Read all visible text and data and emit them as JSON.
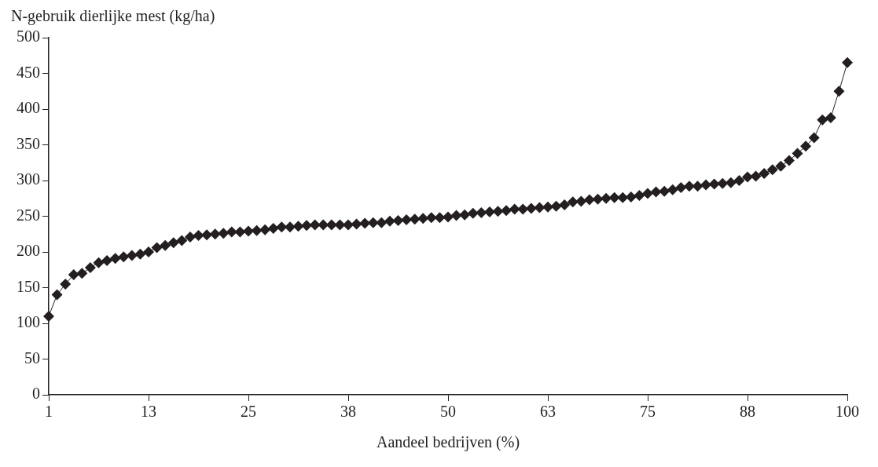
{
  "chart_data": {
    "type": "line",
    "xlabel": "Aandeel bedrijven (%)",
    "ylabel": "N-gebruik dierlijke mest (kg/ha)",
    "categories": [
      "1",
      null,
      null,
      null,
      null,
      null,
      null,
      null,
      null,
      null,
      null,
      null,
      "13",
      null,
      null,
      null,
      null,
      null,
      null,
      null,
      null,
      null,
      null,
      null,
      "25",
      null,
      null,
      null,
      null,
      null,
      null,
      null,
      null,
      null,
      null,
      null,
      "38",
      null,
      null,
      null,
      null,
      null,
      null,
      null,
      null,
      null,
      null,
      null,
      "50",
      null,
      null,
      null,
      null,
      null,
      null,
      null,
      null,
      null,
      null,
      null,
      "63",
      null,
      null,
      null,
      null,
      null,
      null,
      null,
      null,
      null,
      null,
      null,
      "75",
      null,
      null,
      null,
      null,
      null,
      null,
      null,
      null,
      null,
      null,
      null,
      "88",
      null,
      null,
      null,
      null,
      null,
      null,
      null,
      null,
      null,
      null,
      null,
      "100"
    ],
    "ylim": [
      0,
      500
    ],
    "yticks": [
      0,
      50,
      100,
      150,
      200,
      250,
      300,
      350,
      400,
      450,
      500
    ],
    "grid": false,
    "legend": false,
    "marker": "diamond",
    "line_style": "solid",
    "series": [
      {
        "color": "#231f20",
        "values": [
          110,
          140,
          155,
          168,
          170,
          178,
          185,
          188,
          191,
          193,
          195,
          197,
          200,
          206,
          209,
          213,
          216,
          221,
          223,
          224,
          225,
          226,
          228,
          228,
          229,
          230,
          231,
          233,
          235,
          235,
          236,
          237,
          238,
          238,
          238,
          238,
          238,
          239,
          240,
          241,
          241,
          243,
          244,
          245,
          246,
          247,
          248,
          248,
          249,
          251,
          252,
          254,
          255,
          256,
          257,
          258,
          260,
          260,
          261,
          262,
          263,
          264,
          266,
          270,
          271,
          273,
          274,
          275,
          276,
          276,
          277,
          279,
          282,
          284,
          285,
          287,
          290,
          292,
          292,
          294,
          295,
          296,
          297,
          300,
          305,
          306,
          310,
          315,
          320,
          328,
          338,
          348,
          360,
          385,
          388,
          425,
          465
        ]
      }
    ]
  }
}
